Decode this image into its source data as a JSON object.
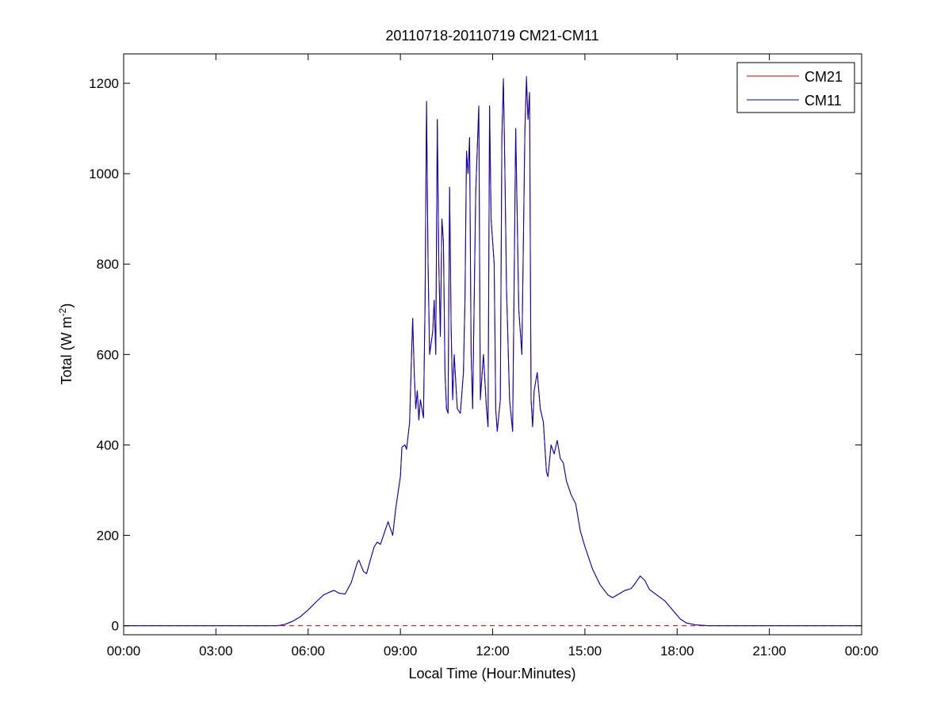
{
  "chart_data": {
    "type": "line",
    "title": "20110718-20110719 CM21-CM11",
    "xlabel": "Local Time (Hour:Minutes)",
    "ylabel_main": "Total (W m",
    "ylabel_sup": "-2",
    "ylabel_close": ")",
    "xlim": [
      0,
      24
    ],
    "ylim": [
      -20,
      1265
    ],
    "x_ticks": [
      0,
      3,
      6,
      9,
      12,
      15,
      18,
      21,
      24
    ],
    "x_tick_labels": [
      "00:00",
      "03:00",
      "06:00",
      "09:00",
      "12:00",
      "15:00",
      "18:00",
      "21:00",
      "00:00"
    ],
    "y_ticks": [
      0,
      200,
      400,
      600,
      800,
      1000,
      1200
    ],
    "y_tick_labels": [
      "0",
      "200",
      "400",
      "600",
      "800",
      "1000",
      "1200"
    ],
    "grid": false,
    "legend_position": "top-right",
    "zero_line": {
      "y": 0,
      "color": "#cc0000",
      "style": "dashed"
    },
    "x_units": "hours",
    "series": [
      {
        "name": "CM21",
        "color": "#cc0000",
        "points": [
          [
            0,
            0
          ],
          [
            5,
            0
          ],
          [
            5.25,
            3
          ],
          [
            5.5,
            10
          ],
          [
            5.75,
            20
          ],
          [
            6,
            35
          ],
          [
            6.25,
            52
          ],
          [
            6.5,
            68
          ],
          [
            6.75,
            76
          ],
          [
            6.85,
            78
          ],
          [
            7,
            72
          ],
          [
            7.2,
            70
          ],
          [
            7.4,
            95
          ],
          [
            7.6,
            140
          ],
          [
            7.65,
            145
          ],
          [
            7.8,
            120
          ],
          [
            7.9,
            115
          ],
          [
            8,
            140
          ],
          [
            8.15,
            175
          ],
          [
            8.25,
            185
          ],
          [
            8.35,
            180
          ],
          [
            8.5,
            210
          ],
          [
            8.6,
            230
          ],
          [
            8.75,
            200
          ],
          [
            8.85,
            260
          ],
          [
            9,
            330
          ],
          [
            9.05,
            395
          ],
          [
            9.15,
            400
          ],
          [
            9.2,
            390
          ],
          [
            9.3,
            450
          ],
          [
            9.35,
            570
          ],
          [
            9.4,
            680
          ],
          [
            9.45,
            560
          ],
          [
            9.5,
            480
          ],
          [
            9.55,
            520
          ],
          [
            9.6,
            455
          ],
          [
            9.65,
            500
          ],
          [
            9.75,
            460
          ],
          [
            9.8,
            700
          ],
          [
            9.85,
            1160
          ],
          [
            9.9,
            800
          ],
          [
            9.95,
            600
          ],
          [
            10.05,
            650
          ],
          [
            10.1,
            720
          ],
          [
            10.15,
            600
          ],
          [
            10.2,
            1120
          ],
          [
            10.25,
            800
          ],
          [
            10.3,
            640
          ],
          [
            10.35,
            900
          ],
          [
            10.4,
            850
          ],
          [
            10.45,
            560
          ],
          [
            10.5,
            480
          ],
          [
            10.55,
            470
          ],
          [
            10.6,
            970
          ],
          [
            10.65,
            660
          ],
          [
            10.7,
            500
          ],
          [
            10.75,
            600
          ],
          [
            10.85,
            480
          ],
          [
            10.95,
            470
          ],
          [
            11.05,
            560
          ],
          [
            11.1,
            720
          ],
          [
            11.15,
            1050
          ],
          [
            11.2,
            1000
          ],
          [
            11.25,
            1080
          ],
          [
            11.3,
            600
          ],
          [
            11.35,
            480
          ],
          [
            11.45,
            960
          ],
          [
            11.55,
            1150
          ],
          [
            11.6,
            500
          ],
          [
            11.7,
            600
          ],
          [
            11.8,
            480
          ],
          [
            11.85,
            440
          ],
          [
            11.9,
            1150
          ],
          [
            11.95,
            900
          ],
          [
            12.05,
            800
          ],
          [
            12.1,
            480
          ],
          [
            12.15,
            430
          ],
          [
            12.25,
            500
          ],
          [
            12.3,
            1080
          ],
          [
            12.35,
            1210
          ],
          [
            12.4,
            1000
          ],
          [
            12.45,
            750
          ],
          [
            12.55,
            500
          ],
          [
            12.65,
            430
          ],
          [
            12.75,
            1100
          ],
          [
            12.8,
            900
          ],
          [
            12.85,
            700
          ],
          [
            12.95,
            600
          ],
          [
            13.05,
            1100
          ],
          [
            13.1,
            1200
          ],
          [
            13.15,
            1120
          ],
          [
            13.2,
            1180
          ],
          [
            13.25,
            500
          ],
          [
            13.3,
            440
          ],
          [
            13.35,
            520
          ],
          [
            13.45,
            560
          ],
          [
            13.5,
            520
          ],
          [
            13.55,
            480
          ],
          [
            13.65,
            450
          ],
          [
            13.75,
            340
          ],
          [
            13.8,
            330
          ],
          [
            13.9,
            400
          ],
          [
            14,
            380
          ],
          [
            14.1,
            410
          ],
          [
            14.2,
            370
          ],
          [
            14.3,
            360
          ],
          [
            14.4,
            320
          ],
          [
            14.55,
            290
          ],
          [
            14.7,
            270
          ],
          [
            14.85,
            210
          ],
          [
            15,
            175
          ],
          [
            15.25,
            125
          ],
          [
            15.5,
            90
          ],
          [
            15.75,
            68
          ],
          [
            15.9,
            62
          ],
          [
            16.1,
            70
          ],
          [
            16.3,
            78
          ],
          [
            16.5,
            82
          ],
          [
            16.65,
            95
          ],
          [
            16.8,
            110
          ],
          [
            16.95,
            100
          ],
          [
            17.1,
            80
          ],
          [
            17.3,
            70
          ],
          [
            17.6,
            55
          ],
          [
            17.85,
            35
          ],
          [
            18.1,
            15
          ],
          [
            18.3,
            6
          ],
          [
            18.6,
            2
          ],
          [
            19,
            0
          ],
          [
            24,
            0
          ]
        ]
      },
      {
        "name": "CM11",
        "color": "#0000cc",
        "points": [
          [
            0,
            0
          ],
          [
            5,
            0
          ],
          [
            5.25,
            3
          ],
          [
            5.5,
            10
          ],
          [
            5.75,
            20
          ],
          [
            6,
            35
          ],
          [
            6.25,
            52
          ],
          [
            6.5,
            68
          ],
          [
            6.75,
            76
          ],
          [
            6.85,
            78
          ],
          [
            7,
            72
          ],
          [
            7.2,
            70
          ],
          [
            7.4,
            95
          ],
          [
            7.6,
            140
          ],
          [
            7.65,
            145
          ],
          [
            7.8,
            120
          ],
          [
            7.9,
            115
          ],
          [
            8,
            140
          ],
          [
            8.15,
            175
          ],
          [
            8.25,
            185
          ],
          [
            8.35,
            180
          ],
          [
            8.5,
            210
          ],
          [
            8.6,
            230
          ],
          [
            8.75,
            200
          ],
          [
            8.85,
            260
          ],
          [
            9,
            330
          ],
          [
            9.05,
            395
          ],
          [
            9.15,
            400
          ],
          [
            9.2,
            390
          ],
          [
            9.3,
            450
          ],
          [
            9.35,
            570
          ],
          [
            9.4,
            680
          ],
          [
            9.45,
            560
          ],
          [
            9.5,
            480
          ],
          [
            9.55,
            520
          ],
          [
            9.6,
            455
          ],
          [
            9.65,
            500
          ],
          [
            9.75,
            460
          ],
          [
            9.8,
            700
          ],
          [
            9.85,
            1160
          ],
          [
            9.9,
            800
          ],
          [
            9.95,
            600
          ],
          [
            10.05,
            650
          ],
          [
            10.1,
            720
          ],
          [
            10.15,
            600
          ],
          [
            10.2,
            1120
          ],
          [
            10.25,
            800
          ],
          [
            10.3,
            640
          ],
          [
            10.35,
            900
          ],
          [
            10.4,
            850
          ],
          [
            10.45,
            560
          ],
          [
            10.5,
            480
          ],
          [
            10.55,
            470
          ],
          [
            10.6,
            970
          ],
          [
            10.65,
            660
          ],
          [
            10.7,
            500
          ],
          [
            10.75,
            600
          ],
          [
            10.85,
            480
          ],
          [
            10.95,
            470
          ],
          [
            11.05,
            560
          ],
          [
            11.1,
            720
          ],
          [
            11.15,
            1050
          ],
          [
            11.2,
            1000
          ],
          [
            11.25,
            1080
          ],
          [
            11.3,
            600
          ],
          [
            11.35,
            480
          ],
          [
            11.45,
            960
          ],
          [
            11.55,
            1150
          ],
          [
            11.6,
            500
          ],
          [
            11.7,
            600
          ],
          [
            11.8,
            480
          ],
          [
            11.85,
            440
          ],
          [
            11.9,
            1150
          ],
          [
            11.95,
            900
          ],
          [
            12.05,
            800
          ],
          [
            12.1,
            480
          ],
          [
            12.15,
            430
          ],
          [
            12.25,
            500
          ],
          [
            12.3,
            1080
          ],
          [
            12.35,
            1210
          ],
          [
            12.4,
            1000
          ],
          [
            12.45,
            750
          ],
          [
            12.55,
            500
          ],
          [
            12.65,
            430
          ],
          [
            12.75,
            1100
          ],
          [
            12.8,
            900
          ],
          [
            12.85,
            700
          ],
          [
            12.95,
            600
          ],
          [
            13.05,
            1100
          ],
          [
            13.1,
            1215
          ],
          [
            13.15,
            1120
          ],
          [
            13.2,
            1180
          ],
          [
            13.25,
            500
          ],
          [
            13.3,
            440
          ],
          [
            13.35,
            520
          ],
          [
            13.45,
            560
          ],
          [
            13.5,
            520
          ],
          [
            13.55,
            480
          ],
          [
            13.65,
            450
          ],
          [
            13.75,
            340
          ],
          [
            13.8,
            330
          ],
          [
            13.9,
            400
          ],
          [
            14,
            380
          ],
          [
            14.1,
            410
          ],
          [
            14.2,
            370
          ],
          [
            14.3,
            360
          ],
          [
            14.4,
            320
          ],
          [
            14.55,
            290
          ],
          [
            14.7,
            270
          ],
          [
            14.85,
            210
          ],
          [
            15,
            175
          ],
          [
            15.25,
            125
          ],
          [
            15.5,
            90
          ],
          [
            15.75,
            68
          ],
          [
            15.9,
            62
          ],
          [
            16.1,
            70
          ],
          [
            16.3,
            78
          ],
          [
            16.5,
            82
          ],
          [
            16.65,
            95
          ],
          [
            16.8,
            110
          ],
          [
            16.95,
            100
          ],
          [
            17.1,
            80
          ],
          [
            17.3,
            70
          ],
          [
            17.6,
            55
          ],
          [
            17.85,
            35
          ],
          [
            18.1,
            15
          ],
          [
            18.3,
            6
          ],
          [
            18.6,
            2
          ],
          [
            19,
            0
          ],
          [
            24,
            0
          ]
        ]
      }
    ]
  }
}
